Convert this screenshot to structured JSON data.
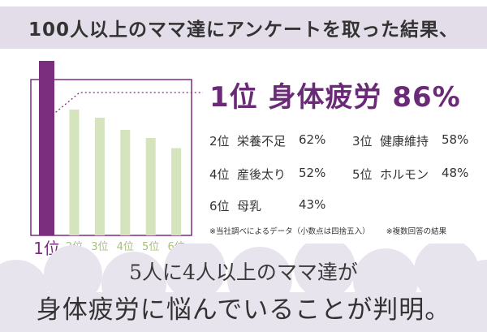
{
  "headline": "100人以上のママ達にアンケートを取った結果、",
  "chart_data": {
    "type": "bar",
    "categories": [
      "1位",
      "2位",
      "3位",
      "4位",
      "5位",
      "6位"
    ],
    "values": [
      86,
      62,
      58,
      52,
      48,
      43
    ],
    "ylim": [
      0,
      100
    ],
    "colors": {
      "highlight": "#7b2d7e",
      "default": "#d5e4bd",
      "frame": "#7b2d7e"
    }
  },
  "ranking": {
    "top": {
      "rank": "1位",
      "label": "身体疲労",
      "pct": "86%"
    },
    "rows": [
      [
        {
          "rank": "2位",
          "label": "栄養不足",
          "pct": "62%"
        },
        {
          "rank": "3位",
          "label": "健康維持",
          "pct": "58%"
        }
      ],
      [
        {
          "rank": "4位",
          "label": "産後太り",
          "pct": "52%"
        },
        {
          "rank": "5位",
          "label": "ホルモン",
          "pct": "48%"
        }
      ],
      [
        {
          "rank": "6位",
          "label": "母乳",
          "pct": "43%"
        }
      ]
    ]
  },
  "notes": {
    "source": "※当社調べによるデータ（小数点は四捨五入）",
    "multiple": "※複数回答の結果"
  },
  "conclusion": {
    "line1": "5人に4人以上のママ達が",
    "line2": "身体疲労に悩んでいることが判明。"
  },
  "colors": {
    "accent": "#6b2a77",
    "band": "#e2dde9",
    "cloud": "#e8e4ee"
  }
}
